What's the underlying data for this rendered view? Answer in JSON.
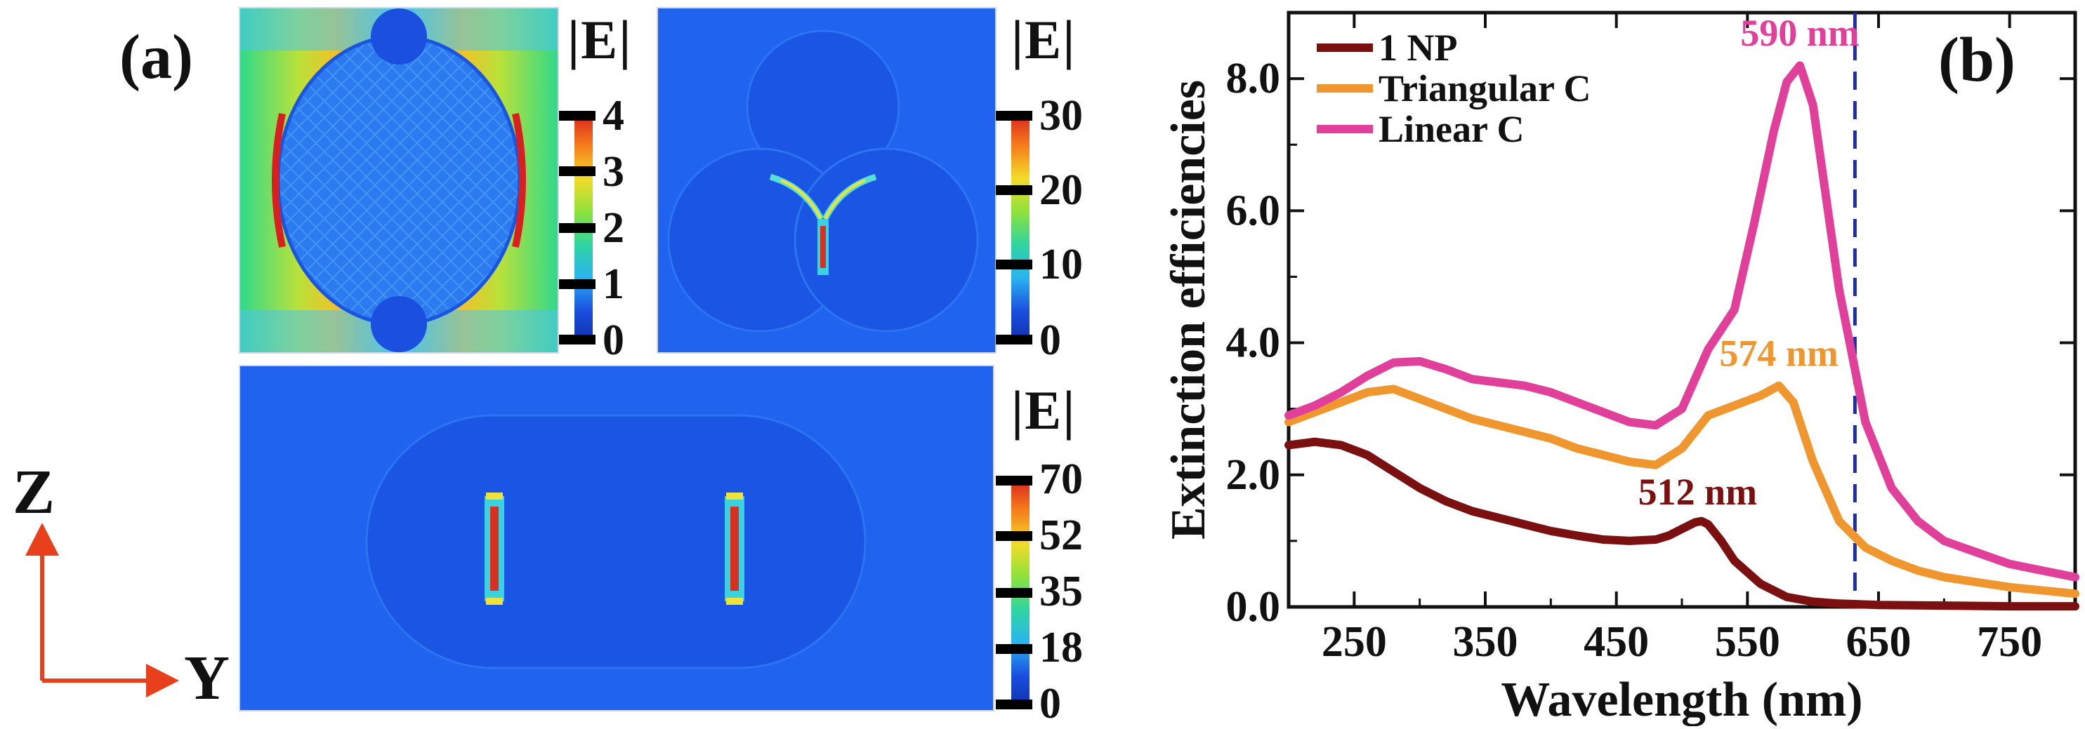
{
  "panel_a": {
    "label": "(a)",
    "maps": [
      {
        "name": "single",
        "colorbar_title": "|E|",
        "ticks": [
          "4",
          "3",
          "2",
          "1",
          "0"
        ]
      },
      {
        "name": "triangular",
        "colorbar_title": "|E|",
        "ticks": [
          "30",
          "20",
          "10",
          "0"
        ]
      },
      {
        "name": "linear",
        "colorbar_title": "|E|",
        "ticks": [
          "70",
          "52",
          "35",
          "18",
          "0"
        ]
      }
    ],
    "axes_indicator": {
      "vertical": "Z",
      "horizontal": "Y"
    },
    "colors": {
      "arrow": "#e8401c",
      "background_field": "#1f4fe0"
    }
  },
  "panel_b": {
    "label": "(b)",
    "chart_data": {
      "type": "line",
      "xlabel": "Wavelength (nm)",
      "ylabel": "Extinction efficiencies",
      "xlim": [
        200,
        800
      ],
      "ylim": [
        0,
        9
      ],
      "xticks": [
        250,
        350,
        450,
        550,
        650,
        750
      ],
      "xtick_labels": [
        "250",
        "350",
        "450",
        "550",
        "650",
        "750"
      ],
      "yticks": [
        0,
        2,
        4,
        6,
        8
      ],
      "ytick_labels": [
        "0.0",
        "2.0",
        "4.0",
        "6.0",
        "8.0"
      ],
      "grid": false,
      "legend_position": "top-left",
      "vline": {
        "x": 632,
        "color": "#1a2fb0",
        "style": "dashed"
      },
      "series": [
        {
          "name": "1 NP",
          "color": "#7a1010",
          "x": [
            200,
            220,
            240,
            260,
            280,
            300,
            320,
            340,
            360,
            380,
            400,
            420,
            440,
            460,
            480,
            490,
            500,
            510,
            515,
            520,
            530,
            540,
            560,
            580,
            600,
            620,
            650,
            700,
            750,
            800
          ],
          "y": [
            2.45,
            2.5,
            2.45,
            2.3,
            2.05,
            1.8,
            1.6,
            1.45,
            1.35,
            1.25,
            1.15,
            1.08,
            1.02,
            1.0,
            1.02,
            1.08,
            1.18,
            1.28,
            1.3,
            1.25,
            1.0,
            0.7,
            0.35,
            0.15,
            0.08,
            0.05,
            0.03,
            0.02,
            0.01,
            0.01
          ]
        },
        {
          "name": "Triangular C",
          "color": "#f0962e",
          "x": [
            200,
            220,
            240,
            260,
            280,
            300,
            320,
            340,
            360,
            380,
            400,
            420,
            440,
            460,
            480,
            500,
            520,
            540,
            560,
            574,
            585,
            600,
            620,
            640,
            660,
            680,
            700,
            750,
            800
          ],
          "y": [
            2.8,
            2.95,
            3.1,
            3.25,
            3.3,
            3.15,
            3.0,
            2.85,
            2.75,
            2.65,
            2.55,
            2.4,
            2.3,
            2.2,
            2.15,
            2.4,
            2.9,
            3.05,
            3.2,
            3.35,
            3.1,
            2.2,
            1.3,
            0.9,
            0.7,
            0.55,
            0.45,
            0.3,
            0.2
          ]
        },
        {
          "name": "Linear C",
          "color": "#e0409a",
          "x": [
            200,
            220,
            240,
            260,
            280,
            300,
            320,
            340,
            360,
            380,
            400,
            420,
            440,
            460,
            480,
            500,
            520,
            540,
            555,
            570,
            580,
            590,
            600,
            610,
            620,
            640,
            660,
            680,
            700,
            750,
            800
          ],
          "y": [
            2.9,
            3.05,
            3.25,
            3.5,
            3.7,
            3.72,
            3.6,
            3.45,
            3.4,
            3.35,
            3.25,
            3.1,
            2.95,
            2.8,
            2.75,
            3.0,
            3.9,
            4.5,
            5.8,
            7.2,
            7.95,
            8.2,
            7.6,
            6.2,
            4.8,
            2.8,
            1.8,
            1.3,
            1.0,
            0.65,
            0.45
          ]
        }
      ],
      "legend": [
        "1 NP",
        "Triangular C",
        "Linear C"
      ],
      "annotations": [
        {
          "text": "590 nm",
          "x": 590,
          "y": 8.5,
          "color": "#e0409a"
        },
        {
          "text": "574 nm",
          "x": 574,
          "y": 3.65,
          "color": "#f0962e"
        },
        {
          "text": "512 nm",
          "x": 512,
          "y": 1.55,
          "color": "#7a1010"
        }
      ]
    }
  }
}
